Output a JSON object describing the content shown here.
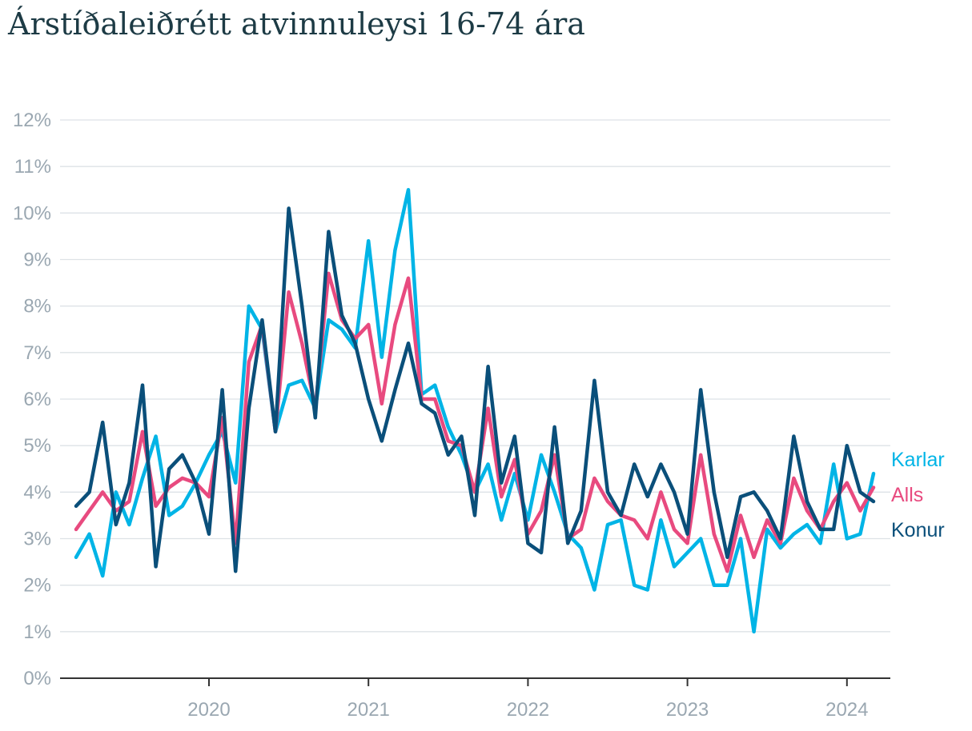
{
  "page": {
    "title": "Árstíðaleiðrétt atvinnuleysi 16-74 ára"
  },
  "chart_data": {
    "type": "line",
    "title": "Árstíðaleiðrétt atvinnuleysi 16-74 ára",
    "xlabel": "",
    "ylabel": "",
    "ylim": [
      0,
      12
    ],
    "y_ticks": [
      "0%",
      "1%",
      "2%",
      "3%",
      "4%",
      "5%",
      "6%",
      "7%",
      "8%",
      "9%",
      "10%",
      "11%",
      "12%"
    ],
    "x_tick_labels": [
      "2020",
      "2021",
      "2022",
      "2023",
      "2024"
    ],
    "x_start": "2019-03",
    "grid": true,
    "legend": "right, at line ends",
    "series": [
      {
        "name": "Karlar",
        "color": "#00b4e6",
        "values": [
          2.6,
          3.1,
          2.2,
          4.0,
          3.3,
          4.3,
          5.2,
          3.5,
          3.7,
          4.2,
          4.8,
          5.3,
          4.2,
          8.0,
          7.5,
          5.3,
          6.3,
          6.4,
          5.8,
          7.7,
          7.5,
          7.1,
          9.4,
          6.9,
          9.2,
          10.5,
          6.1,
          6.3,
          5.4,
          4.8,
          4.0,
          4.6,
          3.4,
          4.4,
          3.4,
          4.8,
          4.0,
          3.1,
          2.8,
          1.9,
          3.3,
          3.4,
          2.0,
          1.9,
          3.4,
          2.4,
          2.7,
          3.0,
          2.0,
          2.0,
          3.0,
          1.0,
          3.2,
          2.8,
          3.1,
          3.3,
          2.9,
          4.6,
          3.0,
          3.1,
          4.4
        ]
      },
      {
        "name": "Alls",
        "color": "#e84a7f",
        "values": [
          3.2,
          3.6,
          4.0,
          3.6,
          3.8,
          5.3,
          3.7,
          4.1,
          4.3,
          4.2,
          3.9,
          5.6,
          2.9,
          6.8,
          7.6,
          5.3,
          8.3,
          7.2,
          5.8,
          8.7,
          7.7,
          7.3,
          7.6,
          5.9,
          7.6,
          8.6,
          6.0,
          6.0,
          5.1,
          5.0,
          4.0,
          5.8,
          3.9,
          4.7,
          3.1,
          3.6,
          4.8,
          3.0,
          3.2,
          4.3,
          3.8,
          3.5,
          3.4,
          3.0,
          4.0,
          3.2,
          2.9,
          4.8,
          3.1,
          2.3,
          3.5,
          2.6,
          3.4,
          2.9,
          4.3,
          3.6,
          3.2,
          3.8,
          4.2,
          3.6,
          4.1
        ]
      },
      {
        "name": "Konur",
        "color": "#0a4f7a",
        "values": [
          3.7,
          4.0,
          5.5,
          3.3,
          4.2,
          6.3,
          2.4,
          4.5,
          4.8,
          4.2,
          3.1,
          6.2,
          2.3,
          5.8,
          7.7,
          5.3,
          10.1,
          8.0,
          5.6,
          9.6,
          7.8,
          7.2,
          6.0,
          5.1,
          6.2,
          7.2,
          5.9,
          5.7,
          4.8,
          5.2,
          3.5,
          6.7,
          4.2,
          5.2,
          2.9,
          2.7,
          5.4,
          2.9,
          3.6,
          6.4,
          4.0,
          3.5,
          4.6,
          3.9,
          4.6,
          4.0,
          3.1,
          6.2,
          4.0,
          2.6,
          3.9,
          4.0,
          3.6,
          3.0,
          5.2,
          3.8,
          3.2,
          3.2,
          5.0,
          4.0,
          3.8
        ]
      }
    ]
  }
}
